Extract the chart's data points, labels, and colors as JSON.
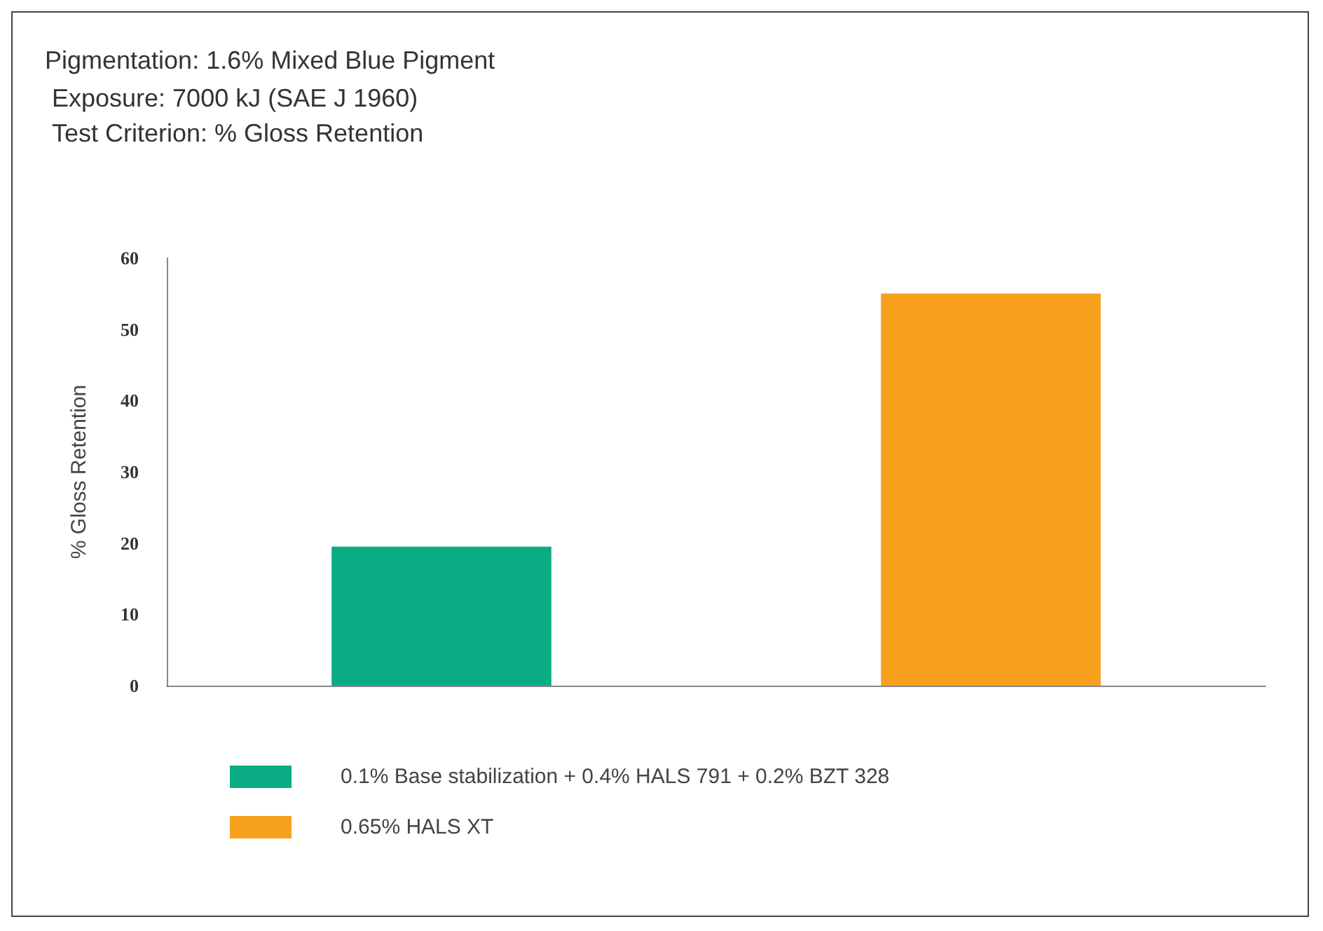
{
  "chart_data": {
    "type": "bar",
    "title": "Pigmentation: 1.6% Mixed Blue Pigment",
    "annotations": [
      "Exposure: 7000 kJ (SAE J 1960)",
      "Test Criterion: % Gloss Retention"
    ],
    "ylabel": "% Gloss Retention",
    "categories": [
      null,
      null
    ],
    "series": [
      {
        "name": "0.1% Base stabilization + 0.4% HALS 791 + 0.2% BZT 328",
        "color": "#0aac84",
        "values": [
          19.5,
          null
        ]
      },
      {
        "name": "0.65% HALS XT",
        "color": "#f6a01e",
        "values": [
          null,
          55
        ]
      }
    ],
    "ylim": [
      0,
      60
    ],
    "yticks": [
      0,
      10,
      20,
      30,
      40,
      50,
      60
    ],
    "grid": false,
    "legend": "bottom left"
  }
}
